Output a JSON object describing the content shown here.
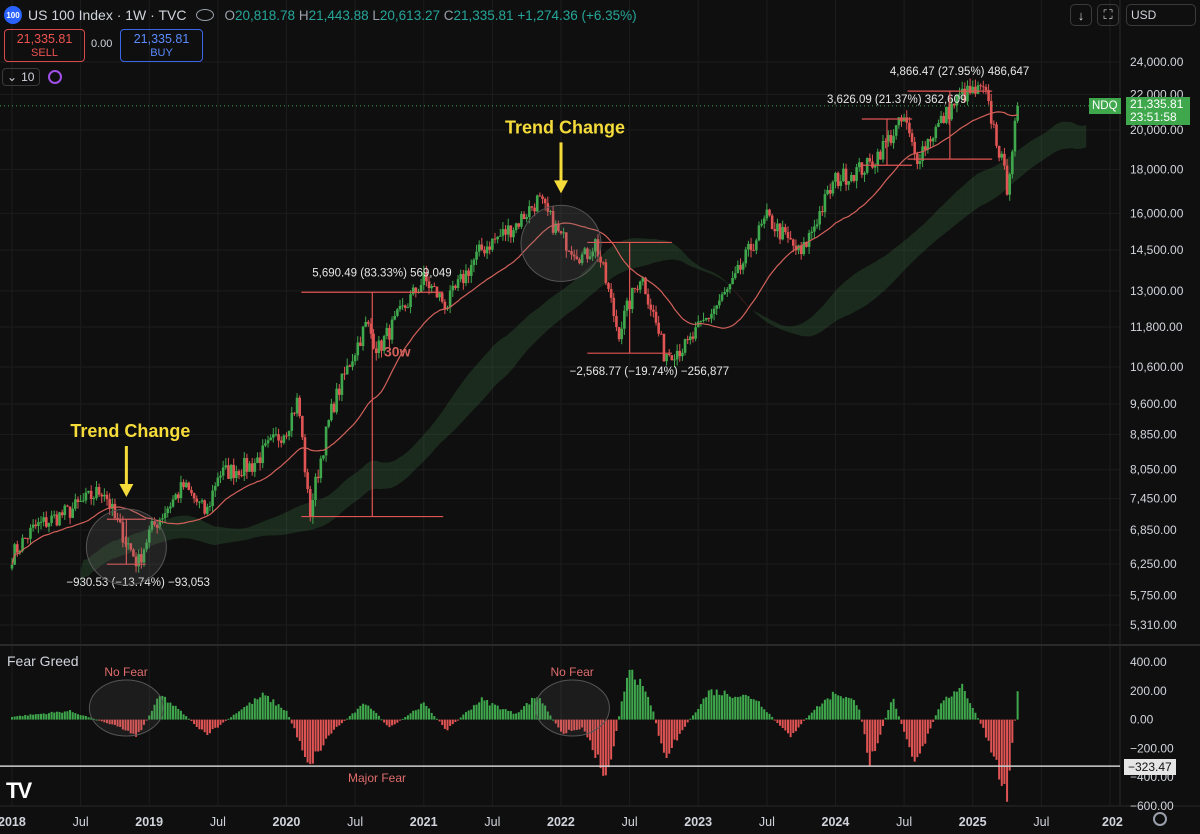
{
  "header": {
    "logo": "100",
    "title": "US 100 Index · 1W · TVC",
    "open_label": "O",
    "open": "20,818.78",
    "high_label": "H",
    "high": "21,443.88",
    "low_label": "L",
    "low": "20,613.27",
    "close_label": "C",
    "close": "21,335.81",
    "change": "+1,274.36 (+6.35%)"
  },
  "trade": {
    "sell_price": "21,335.81",
    "sell_label": "SELL",
    "spread": "0.00",
    "buy_price": "21,335.81",
    "buy_label": "BUY"
  },
  "interval_value": "10",
  "toolbar": {
    "arrow_icon": "download-arrow-icon",
    "fullscreen_icon": "fullscreen-icon",
    "currency": "USD"
  },
  "price_tag": {
    "symbol": "NDQ",
    "price": "21,335.81",
    "countdown": "23:51:58"
  },
  "fear_tag": "−323.47",
  "colors": {
    "up": "#3fa84d",
    "down": "#e05454",
    "ma": "#d2605a",
    "highlight": "#f5dc3a",
    "background": "#0f0f0f"
  },
  "chart_data": [
    {
      "type": "candlestick",
      "title": "US 100 Index · 1W · TVC",
      "y_scale": "log",
      "ylim": [
        5000,
        25000
      ],
      "y_ticks": [
        "24,000.00",
        "22,000.00",
        "20,000.00",
        "18,000.00",
        "16,000.00",
        "14,500.00",
        "13,000.00",
        "11,800.00",
        "10,600.00",
        "9,600.00",
        "8,850.00",
        "8,050.00",
        "7,450.00",
        "6,850.00",
        "6,250.00",
        "5,750.00",
        "5,310.00"
      ],
      "x_ticks": [
        "2018",
        "Jul",
        "2019",
        "Jul",
        "2020",
        "Jul",
        "2021",
        "Jul",
        "2022",
        "Jul",
        "2023",
        "Jul",
        "2024",
        "Jul",
        "2025",
        "Jul",
        "202"
      ],
      "x_tick_dates": [
        "2018-01",
        "2018-07",
        "2019-01",
        "2019-07",
        "2020-01",
        "2020-07",
        "2021-01",
        "2021-07",
        "2022-01",
        "2022-07",
        "2023-01",
        "2023-07",
        "2024-01",
        "2024-07",
        "2025-01",
        "2025-07",
        "2026-01"
      ],
      "price_path": [
        [
          "2018-01",
          6400
        ],
        [
          "2018-03",
          6900
        ],
        [
          "2018-06",
          7200
        ],
        [
          "2018-09",
          7650
        ],
        [
          "2018-10",
          7050
        ],
        [
          "2018-12",
          6250
        ],
        [
          "2019-01",
          6800
        ],
        [
          "2019-04",
          7700
        ],
        [
          "2019-06",
          7150
        ],
        [
          "2019-07",
          7950
        ],
        [
          "2019-10",
          8150
        ],
        [
          "2020-01",
          9000
        ],
        [
          "2020-02",
          9700
        ],
        [
          "2020-03",
          7100
        ],
        [
          "2020-05",
          9500
        ],
        [
          "2020-08",
          11900
        ],
        [
          "2020-09",
          11100
        ],
        [
          "2021-01",
          13400
        ],
        [
          "2021-03",
          12500
        ],
        [
          "2021-06",
          14500
        ],
        [
          "2021-09",
          15500
        ],
        [
          "2021-11",
          16600
        ],
        [
          "2022-01",
          15000
        ],
        [
          "2022-03",
          14200
        ],
        [
          "2022-04",
          14800
        ],
        [
          "2022-06",
          11600
        ],
        [
          "2022-08",
          13600
        ],
        [
          "2022-10",
          11000
        ],
        [
          "2022-12",
          11200
        ],
        [
          "2023-04",
          13200
        ],
        [
          "2023-07",
          15800
        ],
        [
          "2023-10",
          14300
        ],
        [
          "2024-01",
          17500
        ],
        [
          "2024-04",
          18200
        ],
        [
          "2024-07",
          20600
        ],
        [
          "2024-08",
          18500
        ],
        [
          "2024-12",
          22000
        ],
        [
          "2025-02",
          22200
        ],
        [
          "2025-04",
          17200
        ],
        [
          "2025-05",
          21335.81
        ]
      ],
      "moving_average": {
        "label": "30w"
      },
      "measurements": [
        {
          "label": "−930.53 (−13.74%) −93,053",
          "from": "2018-10",
          "to": "2018-12"
        },
        {
          "label": "5,690.49 (83.33%) 569,049",
          "from": "2020-03",
          "to": "2021-02"
        },
        {
          "label": "−2,568.77 (−19.74%) −256,877",
          "from": "2022-04",
          "to": "2022-10"
        },
        {
          "label": "3,626.09 (21.37%) 362,609",
          "from": "2024-04",
          "to": "2024-07"
        },
        {
          "label": "4,866.47 (27.95%) 486,647",
          "from": "2024-08",
          "to": "2025-02"
        }
      ],
      "annotations": [
        {
          "text": "Trend Change",
          "date": "2018-11"
        },
        {
          "text": "Trend Change",
          "date": "2022-01"
        }
      ],
      "current_price_line": 21335.81
    },
    {
      "type": "bar",
      "title": "Fear Greed",
      "ylim": [
        -600,
        420
      ],
      "y_ticks": [
        "400.00",
        "200.00",
        "0.00",
        "−200.00",
        "−400.00",
        "−600.00"
      ],
      "reference_line": -323.47,
      "annotations": [
        {
          "text": "No Fear",
          "date": "2018-11"
        },
        {
          "text": "No Fear",
          "date": "2022-02"
        },
        {
          "text": "Major Fear",
          "date": "2020-09"
        }
      ],
      "path": [
        [
          "2018-01",
          20
        ],
        [
          "2018-06",
          60
        ],
        [
          "2018-10",
          -40
        ],
        [
          "2018-12",
          -110
        ],
        [
          "2019-02",
          170
        ],
        [
          "2019-04",
          40
        ],
        [
          "2019-06",
          -110
        ],
        [
          "2019-09",
          70
        ],
        [
          "2019-11",
          170
        ],
        [
          "2020-01",
          60
        ],
        [
          "2020-03",
          -310
        ],
        [
          "2020-05",
          -80
        ],
        [
          "2020-08",
          120
        ],
        [
          "2020-10",
          -60
        ],
        [
          "2021-01",
          110
        ],
        [
          "2021-03",
          -70
        ],
        [
          "2021-06",
          140
        ],
        [
          "2021-09",
          40
        ],
        [
          "2021-11",
          170
        ],
        [
          "2022-01",
          -90
        ],
        [
          "2022-03",
          -60
        ],
        [
          "2022-05",
          -410
        ],
        [
          "2022-07",
          390
        ],
        [
          "2022-09",
          80
        ],
        [
          "2022-10",
          -260
        ],
        [
          "2022-12",
          -30
        ],
        [
          "2023-02",
          200
        ],
        [
          "2023-06",
          150
        ],
        [
          "2023-09",
          -120
        ],
        [
          "2023-11",
          60
        ],
        [
          "2024-01",
          190
        ],
        [
          "2024-03",
          110
        ],
        [
          "2024-04",
          -300
        ],
        [
          "2024-06",
          150
        ],
        [
          "2024-08",
          -330
        ],
        [
          "2024-10",
          80
        ],
        [
          "2024-12",
          250
        ],
        [
          "2025-02",
          -80
        ],
        [
          "2025-04",
          -540
        ],
        [
          "2025-05",
          240
        ]
      ]
    }
  ]
}
